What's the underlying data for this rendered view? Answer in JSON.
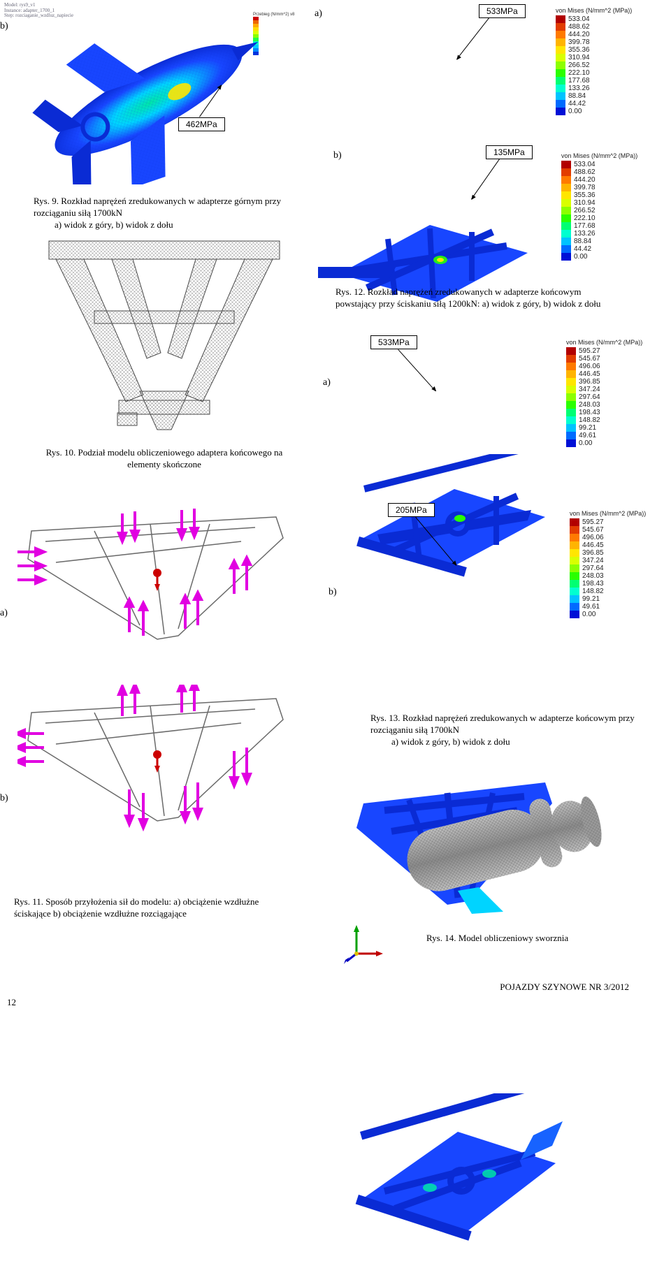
{
  "callouts": {
    "top_a": "533MPa",
    "top_left_b": "462MPa",
    "mid_b": "135MPa",
    "mid_a2": "533MPa",
    "lower_b": "205MPa"
  },
  "letters": {
    "a": "a)",
    "b": "b)"
  },
  "captions": {
    "rys9": "Rys. 9. Rozkład naprężeń zredukowanych w adapterze górnym przy rozciąganiu siłą 1700kN",
    "rys9_sub": "a)    widok z góry, b) widok z dołu",
    "rys12": "Rys. 12. Rozkład naprężeń zredukowanych w adapterze końcowym powstający przy ściskaniu siłą 1200kN: a) widok z góry, b) widok z dołu",
    "rys10": "Rys. 10. Podział modelu obliczeniowego adaptera końcowego na elementy skończone",
    "rys13": "Rys. 13. Rozkład naprężeń zredukowanych w adapterze końcowym przy rozciąganiu siłą 1700kN",
    "rys13_sub": "a)    widok z góry, b) widok z dołu",
    "rys11": "Rys. 11. Sposób przyłożenia sił do modelu: a) obciążenie wzdłużne ściskające b) obciążenie wzdłużne rozciągające",
    "rys14": "Rys. 14. Model obliczeniowy sworznia"
  },
  "legends": {
    "title": "von Mises (N/mm^2 (MPa))",
    "leg1": {
      "vals": [
        "533.04",
        "488.62",
        "444.20",
        "399.78",
        "355.36",
        "310.94",
        "266.52",
        "222.10",
        "177.68",
        "133.26",
        "88.84",
        "44.42",
        "0.00"
      ],
      "colors": [
        "#b20000",
        "#e23c00",
        "#ff7a00",
        "#ffb400",
        "#ffe600",
        "#d9ff00",
        "#8cff00",
        "#2aff00",
        "#00ff73",
        "#00ffd0",
        "#00c3ff",
        "#006bff",
        "#0010d6"
      ]
    },
    "leg2": {
      "vals": [
        "533.04",
        "488.62",
        "444.20",
        "399.78",
        "355.36",
        "310.94",
        "266.52",
        "222.10",
        "177.68",
        "133.26",
        "88.84",
        "44.42",
        "0.00"
      ],
      "colors": [
        "#b20000",
        "#e23c00",
        "#ff7a00",
        "#ffb400",
        "#ffe600",
        "#d9ff00",
        "#8cff00",
        "#2aff00",
        "#00ff73",
        "#00ffd0",
        "#00c3ff",
        "#006bff",
        "#0010d6"
      ]
    },
    "leg3": {
      "vals": [
        "595.27",
        "545.67",
        "496.06",
        "446.45",
        "396.85",
        "347.24",
        "297.64",
        "248.03",
        "198.43",
        "148.82",
        "99.21",
        "49.61",
        "0.00"
      ],
      "colors": [
        "#b20000",
        "#e23c00",
        "#ff7a00",
        "#ffb400",
        "#ffe600",
        "#d9ff00",
        "#8cff00",
        "#2aff00",
        "#00ff73",
        "#00ffd0",
        "#00c3ff",
        "#006bff",
        "#0010d6"
      ]
    },
    "leg4": {
      "vals": [
        "595.27",
        "545.67",
        "496.06",
        "446.45",
        "396.85",
        "347.24",
        "297.64",
        "248.03",
        "198.43",
        "148.82",
        "99.21",
        "49.61",
        "0.00"
      ],
      "colors": [
        "#b20000",
        "#e23c00",
        "#ff7a00",
        "#ffb400",
        "#ffe600",
        "#d9ff00",
        "#8cff00",
        "#2aff00",
        "#00ff73",
        "#00ffd0",
        "#00c3ff",
        "#006bff",
        "#0010d6"
      ]
    }
  },
  "tinyMeta": {
    "line1": "Model: rys9_v1",
    "line2": "Instance: adapter_1700_1",
    "line3": "Step: rozciaganie_wzdluz_napiecie"
  },
  "tinyLegend": {
    "title": "Przebieg (N/mm^2) v8",
    "colors": [
      "#c00",
      "#e60",
      "#fa0",
      "#fd0",
      "#df0",
      "#8f0",
      "#2f4",
      "#0fc",
      "#0cf",
      "#08f",
      "#03d"
    ]
  },
  "footer": {
    "pageNum": "12",
    "journal": "POJAZDY SZYNOWE NR 3/2012"
  },
  "style": {
    "font_body": "Times New Roman",
    "font_ui": "Arial",
    "bg": "#ffffff",
    "text": "#000000",
    "mesh_gray": "#6a6a6a",
    "load_arrow": "#e100e1",
    "fea_bluedark": "#0a2bd4",
    "fea_blue": "#1846ff",
    "fea_cyan": "#00d4ff",
    "fea_teal": "#00e6a8",
    "fea_yellow": "#ffe600"
  }
}
